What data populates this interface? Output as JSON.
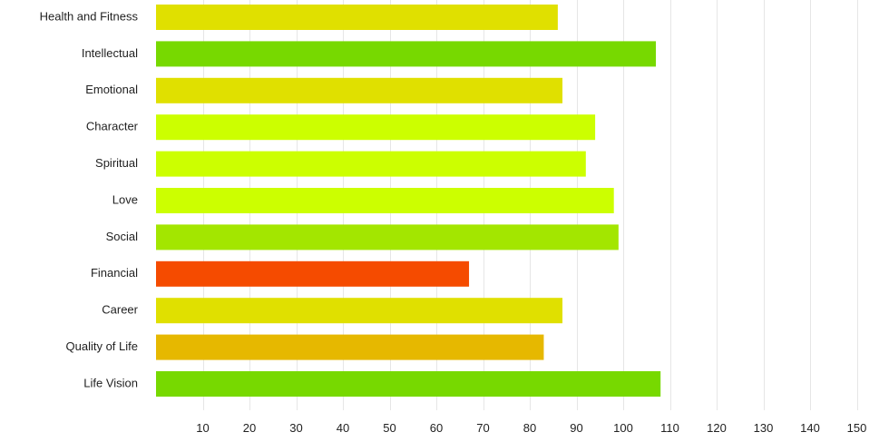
{
  "chart_data": {
    "type": "bar",
    "orientation": "horizontal",
    "title": "",
    "xlabel": "",
    "ylabel": "",
    "categories": [
      "Health and Fitness",
      "Intellectual",
      "Emotional",
      "Character",
      "Spiritual",
      "Love",
      "Social",
      "Financial",
      "Career",
      "Quality of Life",
      "Life Vision"
    ],
    "values": [
      86,
      107,
      87,
      94,
      92,
      98,
      99,
      67,
      87,
      83,
      108
    ],
    "colors": [
      "#e0e000",
      "#77d900",
      "#e0e000",
      "#ccff00",
      "#ccff00",
      "#ccff00",
      "#a3e600",
      "#f54b00",
      "#e0e000",
      "#e6b800",
      "#77d900"
    ],
    "xlim": [
      0,
      150
    ],
    "xticks": [
      10,
      20,
      30,
      40,
      50,
      60,
      70,
      80,
      90,
      100,
      110,
      120,
      130,
      140,
      150
    ],
    "grid": true,
    "legend": "none"
  }
}
